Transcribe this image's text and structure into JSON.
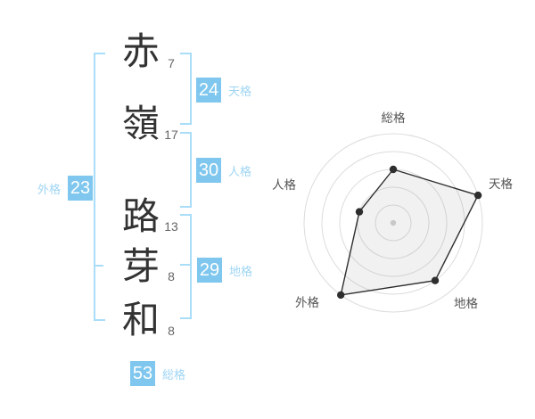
{
  "name": {
    "chars": [
      {
        "char": "赤",
        "strokes": "7",
        "part": "surname"
      },
      {
        "char": "嶺",
        "strokes": "17",
        "part": "surname"
      },
      {
        "char": "路",
        "strokes": "13",
        "part": "given"
      },
      {
        "char": "芽",
        "strokes": "8",
        "part": "given"
      },
      {
        "char": "和",
        "strokes": "8",
        "part": "given"
      }
    ]
  },
  "kaku": {
    "tenkaku": {
      "label": "天格",
      "value": "24"
    },
    "jinkaku": {
      "label": "人格",
      "value": "30"
    },
    "gaikaku": {
      "label": "外格",
      "value": "23"
    },
    "chikaku": {
      "label": "地格",
      "value": "29"
    },
    "soukaku": {
      "label": "総格",
      "value": "53"
    }
  },
  "colors": {
    "badge_blue": "#7fc7ee",
    "label_blue": "#9fd5f4",
    "bracket_blue": "#a9ddf8",
    "kanji_text": "#333333",
    "stroke_text": "#666666",
    "radar_grid": "#dcdcdc",
    "radar_line": "#2e2e2e",
    "radar_fill": "rgba(150,150,150,0.13)",
    "radar_label": "#555555",
    "radar_center_dot": "#c8c8c8"
  },
  "chart_data": {
    "type": "radar",
    "categories": [
      "総格",
      "天格",
      "地格",
      "外格",
      "人格"
    ],
    "values": [
      3,
      5,
      4,
      5,
      2
    ],
    "scale_max": 5,
    "rings": 5,
    "start_angle_deg": 90,
    "direction": "clockwise",
    "grid": "circular",
    "legend": "none",
    "title": ""
  }
}
